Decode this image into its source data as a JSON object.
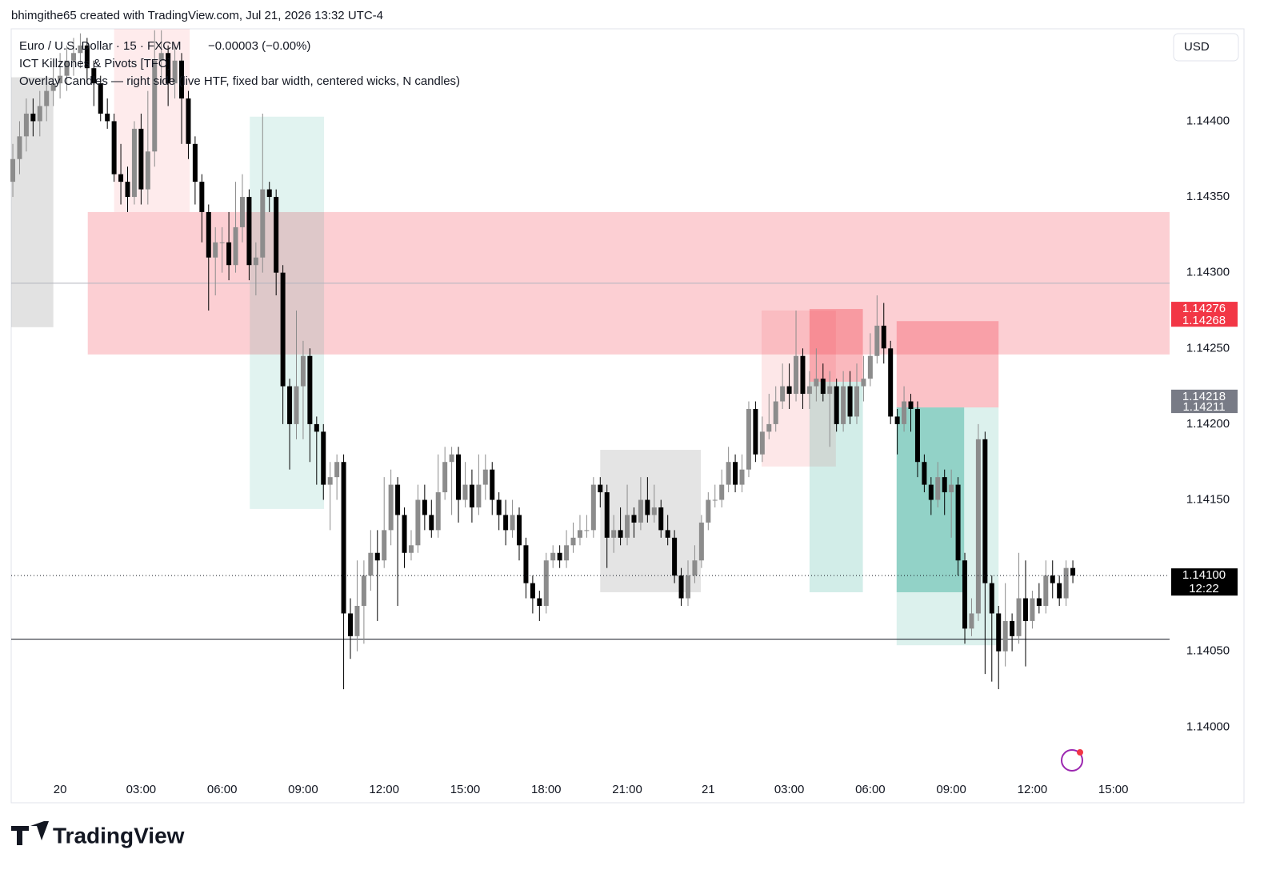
{
  "header": {
    "credit": "bhimgithe65 created with TradingView.com, Jul 21, 2026 13:32 UTC-4",
    "brand": "TradingView"
  },
  "chart_data": {
    "type": "candlestick",
    "symbol": "Euro / U.S. Dollar · 15 · FXCM",
    "change": "−0.00003 (−0.00%)",
    "indicators": [
      "ICT Killzones & Pivots [TFO]",
      "Overlay Candles — right side (live HTF, fixed bar width, centered wicks, N candles)"
    ],
    "currency": "USD",
    "up_color": "#8c8c8c",
    "down_color": "#000000",
    "xlim": [
      -0.24,
      171.33
    ],
    "ylim": [
      1.1395,
      1.14461
    ],
    "grid": false,
    "xticks": [
      {
        "value": 7,
        "label": "20"
      },
      {
        "value": 19,
        "label": "03:00"
      },
      {
        "value": 31,
        "label": "06:00"
      },
      {
        "value": 43,
        "label": "09:00"
      },
      {
        "value": 55,
        "label": "12:00"
      },
      {
        "value": 67,
        "label": "15:00"
      },
      {
        "value": 79,
        "label": "18:00"
      },
      {
        "value": 91,
        "label": "21:00"
      },
      {
        "value": 103,
        "label": "21"
      },
      {
        "value": 115,
        "label": "03:00"
      },
      {
        "value": 127,
        "label": "06:00"
      },
      {
        "value": 139,
        "label": "09:00"
      },
      {
        "value": 151,
        "label": "12:00"
      },
      {
        "value": 163,
        "label": "15:00"
      }
    ],
    "yticks": [
      {
        "value": 1.14,
        "label": "1.14000"
      },
      {
        "value": 1.1405,
        "label": "1.14050"
      },
      {
        "value": 1.1415,
        "label": "1.14150"
      },
      {
        "value": 1.142,
        "label": "1.14200"
      },
      {
        "value": 1.1425,
        "label": "1.14250"
      },
      {
        "value": 1.143,
        "label": "1.14300"
      },
      {
        "value": 1.1435,
        "label": "1.14350"
      },
      {
        "value": 1.144,
        "label": "1.14400"
      }
    ],
    "open": [
      1.1436,
      1.14375,
      1.1439,
      1.14405,
      1.144,
      1.1441,
      1.1442,
      1.14425,
      1.1443,
      1.1444,
      1.14445,
      1.1445,
      1.14435,
      1.14425,
      1.14405,
      1.144,
      1.14365,
      1.1436,
      1.1435,
      1.14395,
      1.14355,
      1.1438,
      1.1444,
      1.14445,
      1.14425,
      1.1444,
      1.14415,
      1.14385,
      1.1436,
      1.1434,
      1.1431,
      1.1432,
      1.1432,
      1.14305,
      1.1433,
      1.1435,
      1.14305,
      1.1431,
      1.14355,
      1.1435,
      1.143,
      1.14225,
      1.142,
      1.14225,
      1.14245,
      1.142,
      1.14195,
      1.1416,
      1.14165,
      1.14175,
      1.14075,
      1.1406,
      1.1408,
      1.141,
      1.14115,
      1.1411,
      1.1413,
      1.1416,
      1.1414,
      1.14115,
      1.1412,
      1.1415,
      1.1414,
      1.1413,
      1.14155,
      1.14175,
      1.1418,
      1.1415,
      1.1416,
      1.14145,
      1.1416,
      1.1417,
      1.1415,
      1.1414,
      1.1413,
      1.1414,
      1.1412,
      1.14095,
      1.14085,
      1.1408,
      1.1411,
      1.14115,
      1.1411,
      1.1412,
      1.14125,
      1.1413,
      1.1413,
      1.1416,
      1.14155,
      1.14125,
      1.1413,
      1.14125,
      1.1414,
      1.14135,
      1.1415,
      1.1414,
      1.14145,
      1.1413,
      1.14125,
      1.141,
      1.14085,
      1.141,
      1.1411,
      1.14135,
      1.1415,
      1.1415,
      1.1416,
      1.14175,
      1.1416,
      1.1417,
      1.1421,
      1.1418,
      1.14195,
      1.142,
      1.14215,
      1.14225,
      1.1422,
      1.14245,
      1.1422,
      1.14225,
      1.1423,
      1.1422,
      1.14225,
      1.142,
      1.14225,
      1.14205,
      1.14225,
      1.1423,
      1.14245,
      1.14265,
      1.1425,
      1.14205,
      1.142,
      1.14215,
      1.1421,
      1.14175,
      1.1416,
      1.1415,
      1.14165,
      1.14155,
      1.1416,
      1.1411,
      1.14065,
      1.14075,
      1.1419,
      1.14095,
      1.14075,
      1.1405,
      1.1407,
      1.1406,
      1.14085,
      1.1407,
      1.14085,
      1.1408,
      1.141,
      1.14095,
      1.14085,
      1.14105
    ],
    "high": [
      1.14385,
      1.144,
      1.14415,
      1.14415,
      1.1442,
      1.1443,
      1.1444,
      1.14445,
      1.1445,
      1.14455,
      1.14458,
      1.14455,
      1.1444,
      1.1443,
      1.14415,
      1.14405,
      1.14385,
      1.1437,
      1.144,
      1.14405,
      1.1442,
      1.1446,
      1.1446,
      1.1445,
      1.1445,
      1.14445,
      1.1442,
      1.1439,
      1.14365,
      1.14345,
      1.1433,
      1.1433,
      1.1434,
      1.1436,
      1.14365,
      1.14355,
      1.1432,
      1.14405,
      1.1436,
      1.14355,
      1.14305,
      1.1423,
      1.14275,
      1.14255,
      1.1425,
      1.14205,
      1.142,
      1.14175,
      1.1418,
      1.1418,
      1.14085,
      1.1411,
      1.1411,
      1.1413,
      1.1413,
      1.14165,
      1.1417,
      1.14165,
      1.14145,
      1.1413,
      1.1416,
      1.1416,
      1.1415,
      1.1418,
      1.14185,
      1.14185,
      1.14185,
      1.14175,
      1.1417,
      1.1418,
      1.1418,
      1.14175,
      1.14155,
      1.1415,
      1.1415,
      1.14145,
      1.14125,
      1.141,
      1.1409,
      1.14115,
      1.1412,
      1.1412,
      1.1413,
      1.14135,
      1.1414,
      1.1414,
      1.14165,
      1.14165,
      1.1416,
      1.1414,
      1.14145,
      1.1416,
      1.14145,
      1.14165,
      1.14165,
      1.1416,
      1.1415,
      1.1414,
      1.1413,
      1.14105,
      1.1411,
      1.1412,
      1.1414,
      1.14155,
      1.1416,
      1.1417,
      1.14185,
      1.1418,
      1.1418,
      1.14215,
      1.14215,
      1.14205,
      1.1422,
      1.14225,
      1.1424,
      1.1424,
      1.14275,
      1.1425,
      1.14235,
      1.1425,
      1.1424,
      1.14235,
      1.1423,
      1.14235,
      1.14235,
      1.1424,
      1.14245,
      1.1426,
      1.14285,
      1.1428,
      1.14255,
      1.1421,
      1.14225,
      1.1422,
      1.14215,
      1.1418,
      1.14165,
      1.14175,
      1.1417,
      1.1417,
      1.14165,
      1.14115,
      1.14085,
      1.142,
      1.14195,
      1.141,
      1.1408,
      1.14095,
      1.14075,
      1.14115,
      1.1411,
      1.1409,
      1.14095,
      1.1411,
      1.1411,
      1.141,
      1.1411,
      1.1411
    ],
    "low": [
      1.1435,
      1.14365,
      1.1438,
      1.1439,
      1.1439,
      1.144,
      1.1441,
      1.14415,
      1.1442,
      1.1443,
      1.14435,
      1.14425,
      1.1441,
      1.144,
      1.14395,
      1.1436,
      1.14345,
      1.1434,
      1.14345,
      1.14345,
      1.14345,
      1.1437,
      1.14425,
      1.1441,
      1.14415,
      1.14385,
      1.14375,
      1.14345,
      1.1432,
      1.14275,
      1.14285,
      1.143,
      1.14295,
      1.143,
      1.1432,
      1.14295,
      1.14285,
      1.143,
      1.1434,
      1.14285,
      1.142,
      1.1417,
      1.1419,
      1.1419,
      1.14175,
      1.1416,
      1.1415,
      1.1413,
      1.1415,
      1.14025,
      1.14045,
      1.1405,
      1.14055,
      1.1409,
      1.1407,
      1.14105,
      1.1412,
      1.1408,
      1.14105,
      1.1411,
      1.14115,
      1.1413,
      1.14125,
      1.14125,
      1.1415,
      1.1414,
      1.14135,
      1.14145,
      1.14135,
      1.1414,
      1.1415,
      1.1414,
      1.1413,
      1.1412,
      1.14125,
      1.1411,
      1.14085,
      1.14075,
      1.1407,
      1.14075,
      1.14105,
      1.14105,
      1.14105,
      1.14115,
      1.1412,
      1.14125,
      1.14125,
      1.14145,
      1.14105,
      1.14115,
      1.1412,
      1.1412,
      1.14125,
      1.1413,
      1.14135,
      1.14135,
      1.14125,
      1.1412,
      1.14095,
      1.1408,
      1.1408,
      1.14095,
      1.14105,
      1.1413,
      1.14145,
      1.14145,
      1.14155,
      1.14155,
      1.14155,
      1.14165,
      1.14175,
      1.14175,
      1.1419,
      1.14195,
      1.1421,
      1.1421,
      1.14215,
      1.1421,
      1.1421,
      1.14215,
      1.14215,
      1.14185,
      1.14195,
      1.14195,
      1.142,
      1.142,
      1.14215,
      1.14225,
      1.1424,
      1.1424,
      1.142,
      1.1418,
      1.14195,
      1.14195,
      1.14165,
      1.14155,
      1.1414,
      1.14145,
      1.1414,
      1.14125,
      1.141,
      1.14055,
      1.1406,
      1.1407,
      1.14035,
      1.1403,
      1.14025,
      1.1404,
      1.1405,
      1.14055,
      1.1404,
      1.14065,
      1.14075,
      1.14075,
      1.14085,
      1.1408,
      1.1408,
      1.14095
    ],
    "close": [
      1.14375,
      1.1439,
      1.14405,
      1.144,
      1.1441,
      1.1442,
      1.14425,
      1.1443,
      1.1444,
      1.14445,
      1.1445,
      1.14435,
      1.14425,
      1.14405,
      1.144,
      1.14365,
      1.1436,
      1.1435,
      1.14395,
      1.14355,
      1.1438,
      1.1444,
      1.14445,
      1.14425,
      1.1444,
      1.14415,
      1.14385,
      1.1436,
      1.1434,
      1.1431,
      1.1432,
      1.1432,
      1.14305,
      1.1433,
      1.1435,
      1.14305,
      1.1431,
      1.14355,
      1.1435,
      1.143,
      1.14225,
      1.142,
      1.14225,
      1.14245,
      1.142,
      1.14195,
      1.1416,
      1.14165,
      1.14175,
      1.14075,
      1.1406,
      1.1408,
      1.141,
      1.14115,
      1.1411,
      1.1413,
      1.1416,
      1.1414,
      1.14115,
      1.1412,
      1.1415,
      1.1414,
      1.1413,
      1.14155,
      1.14175,
      1.1418,
      1.1415,
      1.1416,
      1.14145,
      1.1416,
      1.1417,
      1.1415,
      1.1414,
      1.1413,
      1.1414,
      1.1412,
      1.14095,
      1.14085,
      1.1408,
      1.1411,
      1.14115,
      1.1411,
      1.1412,
      1.14125,
      1.1413,
      1.1413,
      1.1416,
      1.14155,
      1.14125,
      1.1413,
      1.14125,
      1.1414,
      1.14135,
      1.1415,
      1.1414,
      1.14145,
      1.1413,
      1.14125,
      1.141,
      1.14085,
      1.141,
      1.1411,
      1.14135,
      1.1415,
      1.1415,
      1.1416,
      1.14175,
      1.1416,
      1.1417,
      1.1421,
      1.1418,
      1.14195,
      1.142,
      1.14215,
      1.14225,
      1.1422,
      1.14245,
      1.1422,
      1.14225,
      1.1423,
      1.1422,
      1.14225,
      1.142,
      1.14225,
      1.14205,
      1.14225,
      1.1423,
      1.14245,
      1.14265,
      1.1425,
      1.14205,
      1.142,
      1.14215,
      1.1421,
      1.14175,
      1.1416,
      1.1415,
      1.14165,
      1.14155,
      1.1416,
      1.1411,
      1.14065,
      1.14075,
      1.1419,
      1.14095,
      1.14075,
      1.1405,
      1.1407,
      1.1406,
      1.14085,
      1.1407,
      1.14085,
      1.1408,
      1.141,
      1.14095,
      1.14085,
      1.14105,
      1.141
    ],
    "zones": [
      {
        "from": -0.24,
        "to": 6.0,
        "top": 1.14429,
        "bottom": 1.14264,
        "color": "rgba(160,160,160,0.3)"
      },
      {
        "from": 15.0,
        "to": 26.2,
        "top": 1.14461,
        "bottom": 1.1434,
        "color": "rgba(242,54,69,0.1)"
      },
      {
        "from": 11.1,
        "to": 171.33,
        "top": 1.1434,
        "bottom": 1.14246,
        "color": "rgba(242,54,69,0.24)"
      },
      {
        "from": 35.1,
        "to": 46.1,
        "top": 1.14403,
        "bottom": 1.14144,
        "color": "rgba(8,153,129,0.12)"
      },
      {
        "from": 87.0,
        "to": 101.9,
        "top": 1.14183,
        "bottom": 1.14089,
        "color": "rgba(120,120,120,0.2)"
      },
      {
        "from": 110.9,
        "to": 121.9,
        "top": 1.14275,
        "bottom": 1.14172,
        "color": "rgba(242,54,69,0.12)"
      },
      {
        "from": 118.0,
        "to": 125.9,
        "top": 1.14276,
        "bottom": 1.14228,
        "color": "rgba(242,54,69,0.35)"
      },
      {
        "from": 118.0,
        "to": 125.9,
        "top": 1.14228,
        "bottom": 1.14089,
        "color": "rgba(8,153,129,0.18)"
      },
      {
        "from": 130.9,
        "to": 146.0,
        "top": 1.14268,
        "bottom": 1.14211,
        "color": "rgba(242,54,69,0.3)"
      },
      {
        "from": 130.9,
        "to": 146.0,
        "top": 1.14211,
        "bottom": 1.14054,
        "color": "rgba(8,153,129,0.14)"
      },
      {
        "from": 130.9,
        "to": 140.9,
        "top": 1.14211,
        "bottom": 1.14089,
        "color": "rgba(8,153,129,0.35)"
      }
    ],
    "lines": [
      {
        "value": 1.14293,
        "color": "#b2b5be"
      },
      {
        "value": 1.14058,
        "color": "#131722"
      }
    ],
    "price_labels": [
      {
        "value": 1.14276,
        "color": "#f23645"
      },
      {
        "value": 1.14268,
        "color": "#f23645"
      },
      {
        "value": 1.14218,
        "color": "#787b86"
      },
      {
        "value": 1.14211,
        "color": "#787b86"
      },
      {
        "value": 1.141,
        "label": "1.14100",
        "color": "#000000",
        "countdown": "12:22"
      }
    ]
  }
}
